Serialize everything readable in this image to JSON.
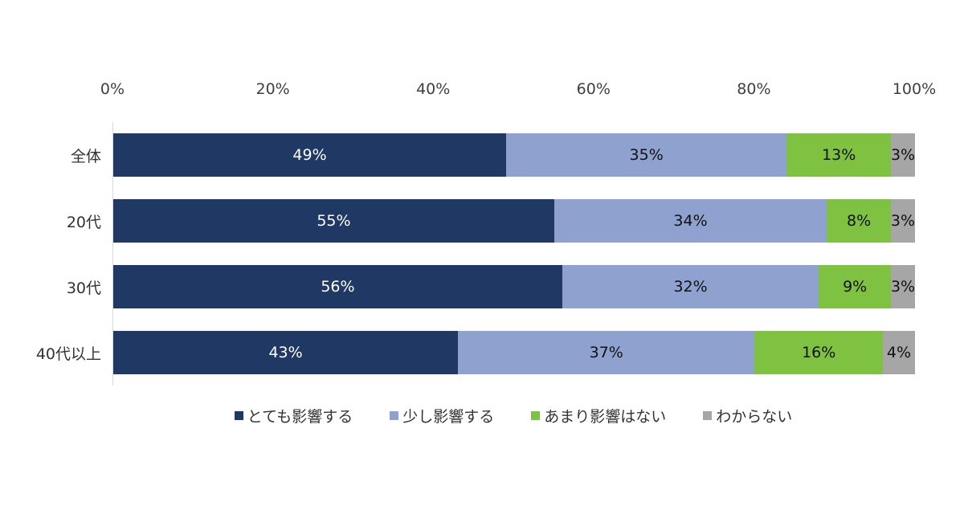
{
  "chart_data": {
    "type": "bar",
    "variant": "horizontal-stacked",
    "title": "",
    "categories": [
      "全体",
      "20代",
      "30代",
      "40代以上"
    ],
    "series": [
      {
        "name": "とても影響する",
        "color": "#203864",
        "label_color": "#ffffff",
        "values": [
          49,
          55,
          56,
          43
        ]
      },
      {
        "name": "少し影響する",
        "color": "#8fa2cf",
        "label_color": "#111111",
        "values": [
          35,
          34,
          32,
          37
        ]
      },
      {
        "name": "あまり影響はない",
        "color": "#7fc241",
        "label_color": "#111111",
        "values": [
          13,
          8,
          9,
          16
        ]
      },
      {
        "name": "わからない",
        "color": "#a6a6a6",
        "label_color": "#111111",
        "values": [
          3,
          3,
          3,
          4
        ]
      }
    ],
    "x_axis": {
      "min": 0,
      "max": 100,
      "ticks": [
        "0%",
        "20%",
        "40%",
        "60%",
        "80%",
        "100%"
      ],
      "position": "top"
    },
    "value_suffix": "%",
    "legend_position": "bottom",
    "grid": false,
    "axis_line_color": "#d9d9d9"
  }
}
